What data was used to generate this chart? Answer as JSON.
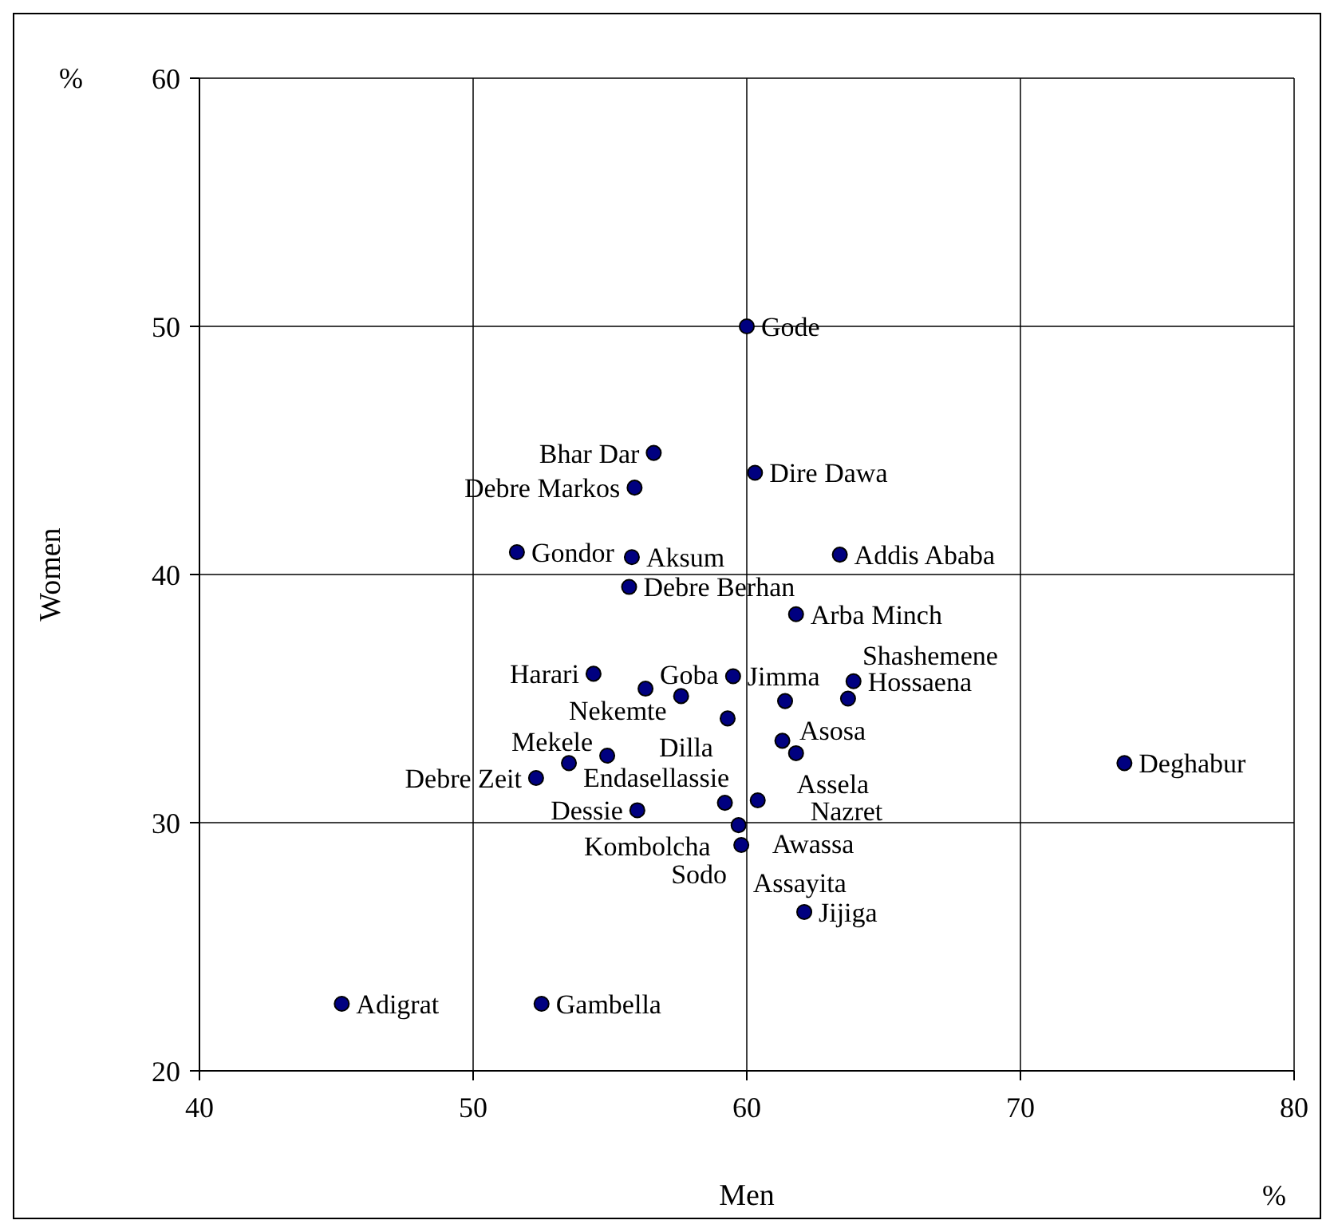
{
  "chart_data": {
    "type": "scatter",
    "xlabel": "Men",
    "ylabel": "Women",
    "x": [
      60.0,
      56.6,
      60.3,
      55.9,
      51.6,
      55.8,
      63.4,
      55.7,
      61.8,
      54.4,
      59.5,
      63.9,
      56.3,
      57.6,
      61.4,
      63.7,
      59.3,
      61.3,
      61.8,
      54.9,
      53.5,
      52.3,
      56.0,
      59.2,
      60.4,
      59.7,
      59.8,
      62.1,
      73.8,
      45.2,
      52.5
    ],
    "values": [
      50.0,
      44.9,
      44.1,
      43.5,
      40.9,
      40.7,
      40.8,
      39.5,
      38.4,
      36.0,
      35.9,
      35.7,
      35.4,
      35.1,
      34.9,
      35.0,
      34.2,
      33.3,
      32.8,
      32.7,
      32.4,
      31.8,
      30.5,
      30.8,
      30.9,
      29.9,
      29.1,
      26.4,
      32.4,
      22.7,
      22.7
    ],
    "color": "#000080",
    "marker": "circle",
    "xlim": [
      40,
      80
    ],
    "xticks": [
      40,
      50,
      60,
      70,
      80
    ],
    "ylim": [
      20,
      60
    ],
    "yticks": [
      20,
      30,
      40,
      50,
      60
    ],
    "grid": true,
    "annotations": [
      {
        "text": "Gode",
        "x": 60.0,
        "y": 50.0
      },
      {
        "text": "Bhar Dar",
        "x": 56.6,
        "y": 44.9
      },
      {
        "text": "Dire Dawa",
        "x": 60.3,
        "y": 44.1
      },
      {
        "text": "Debre Markos",
        "x": 55.9,
        "y": 43.5
      },
      {
        "text": "Gondor",
        "x": 51.6,
        "y": 40.9
      },
      {
        "text": "Aksum",
        "x": 55.8,
        "y": 40.7
      },
      {
        "text": "Addis Ababa",
        "x": 63.4,
        "y": 40.8
      },
      {
        "text": "Debre Berhan",
        "x": 55.7,
        "y": 39.5
      },
      {
        "text": "Arba Minch",
        "x": 61.8,
        "y": 38.4
      },
      {
        "text": "Harari",
        "x": 54.4,
        "y": 36.0
      },
      {
        "text": "Jimma",
        "x": 59.5,
        "y": 35.9
      },
      {
        "text": "Hossaena",
        "x": 63.9,
        "y": 35.7
      },
      {
        "text": "Goba",
        "x": 56.3,
        "y": 35.4
      },
      {
        "text": "Nekemte",
        "x": 57.6,
        "y": 35.1
      },
      {
        "text": "Asosa",
        "x": 61.4,
        "y": 34.9
      },
      {
        "text": "Shashemene",
        "x": 63.7,
        "y": 35.0
      },
      {
        "text": "Dilla",
        "x": 59.3,
        "y": 34.2
      },
      {
        "text": "Assela",
        "x": 61.3,
        "y": 33.3
      },
      {
        "text": "Nazret",
        "x": 61.8,
        "y": 32.8
      },
      {
        "text": "Mekele",
        "x": 54.9,
        "y": 32.7
      },
      {
        "text": "Endasellassie",
        "x": 53.5,
        "y": 32.4
      },
      {
        "text": "Debre Zeit",
        "x": 52.3,
        "y": 31.8
      },
      {
        "text": "Dessie",
        "x": 56.0,
        "y": 30.5
      },
      {
        "text": "Kombolcha",
        "x": 59.2,
        "y": 30.8
      },
      {
        "text": "Awassa",
        "x": 60.4,
        "y": 30.9
      },
      {
        "text": "Assayita",
        "x": 59.7,
        "y": 29.9
      },
      {
        "text": "Sodo",
        "x": 59.8,
        "y": 29.1
      },
      {
        "text": "Jijiga",
        "x": 62.1,
        "y": 26.4
      },
      {
        "text": "Deghabur",
        "x": 73.8,
        "y": 32.4
      },
      {
        "text": "Adigrat",
        "x": 45.2,
        "y": 22.7
      },
      {
        "text": "Gambella",
        "x": 52.5,
        "y": 22.7
      },
      "%",
      "%"
    ]
  }
}
